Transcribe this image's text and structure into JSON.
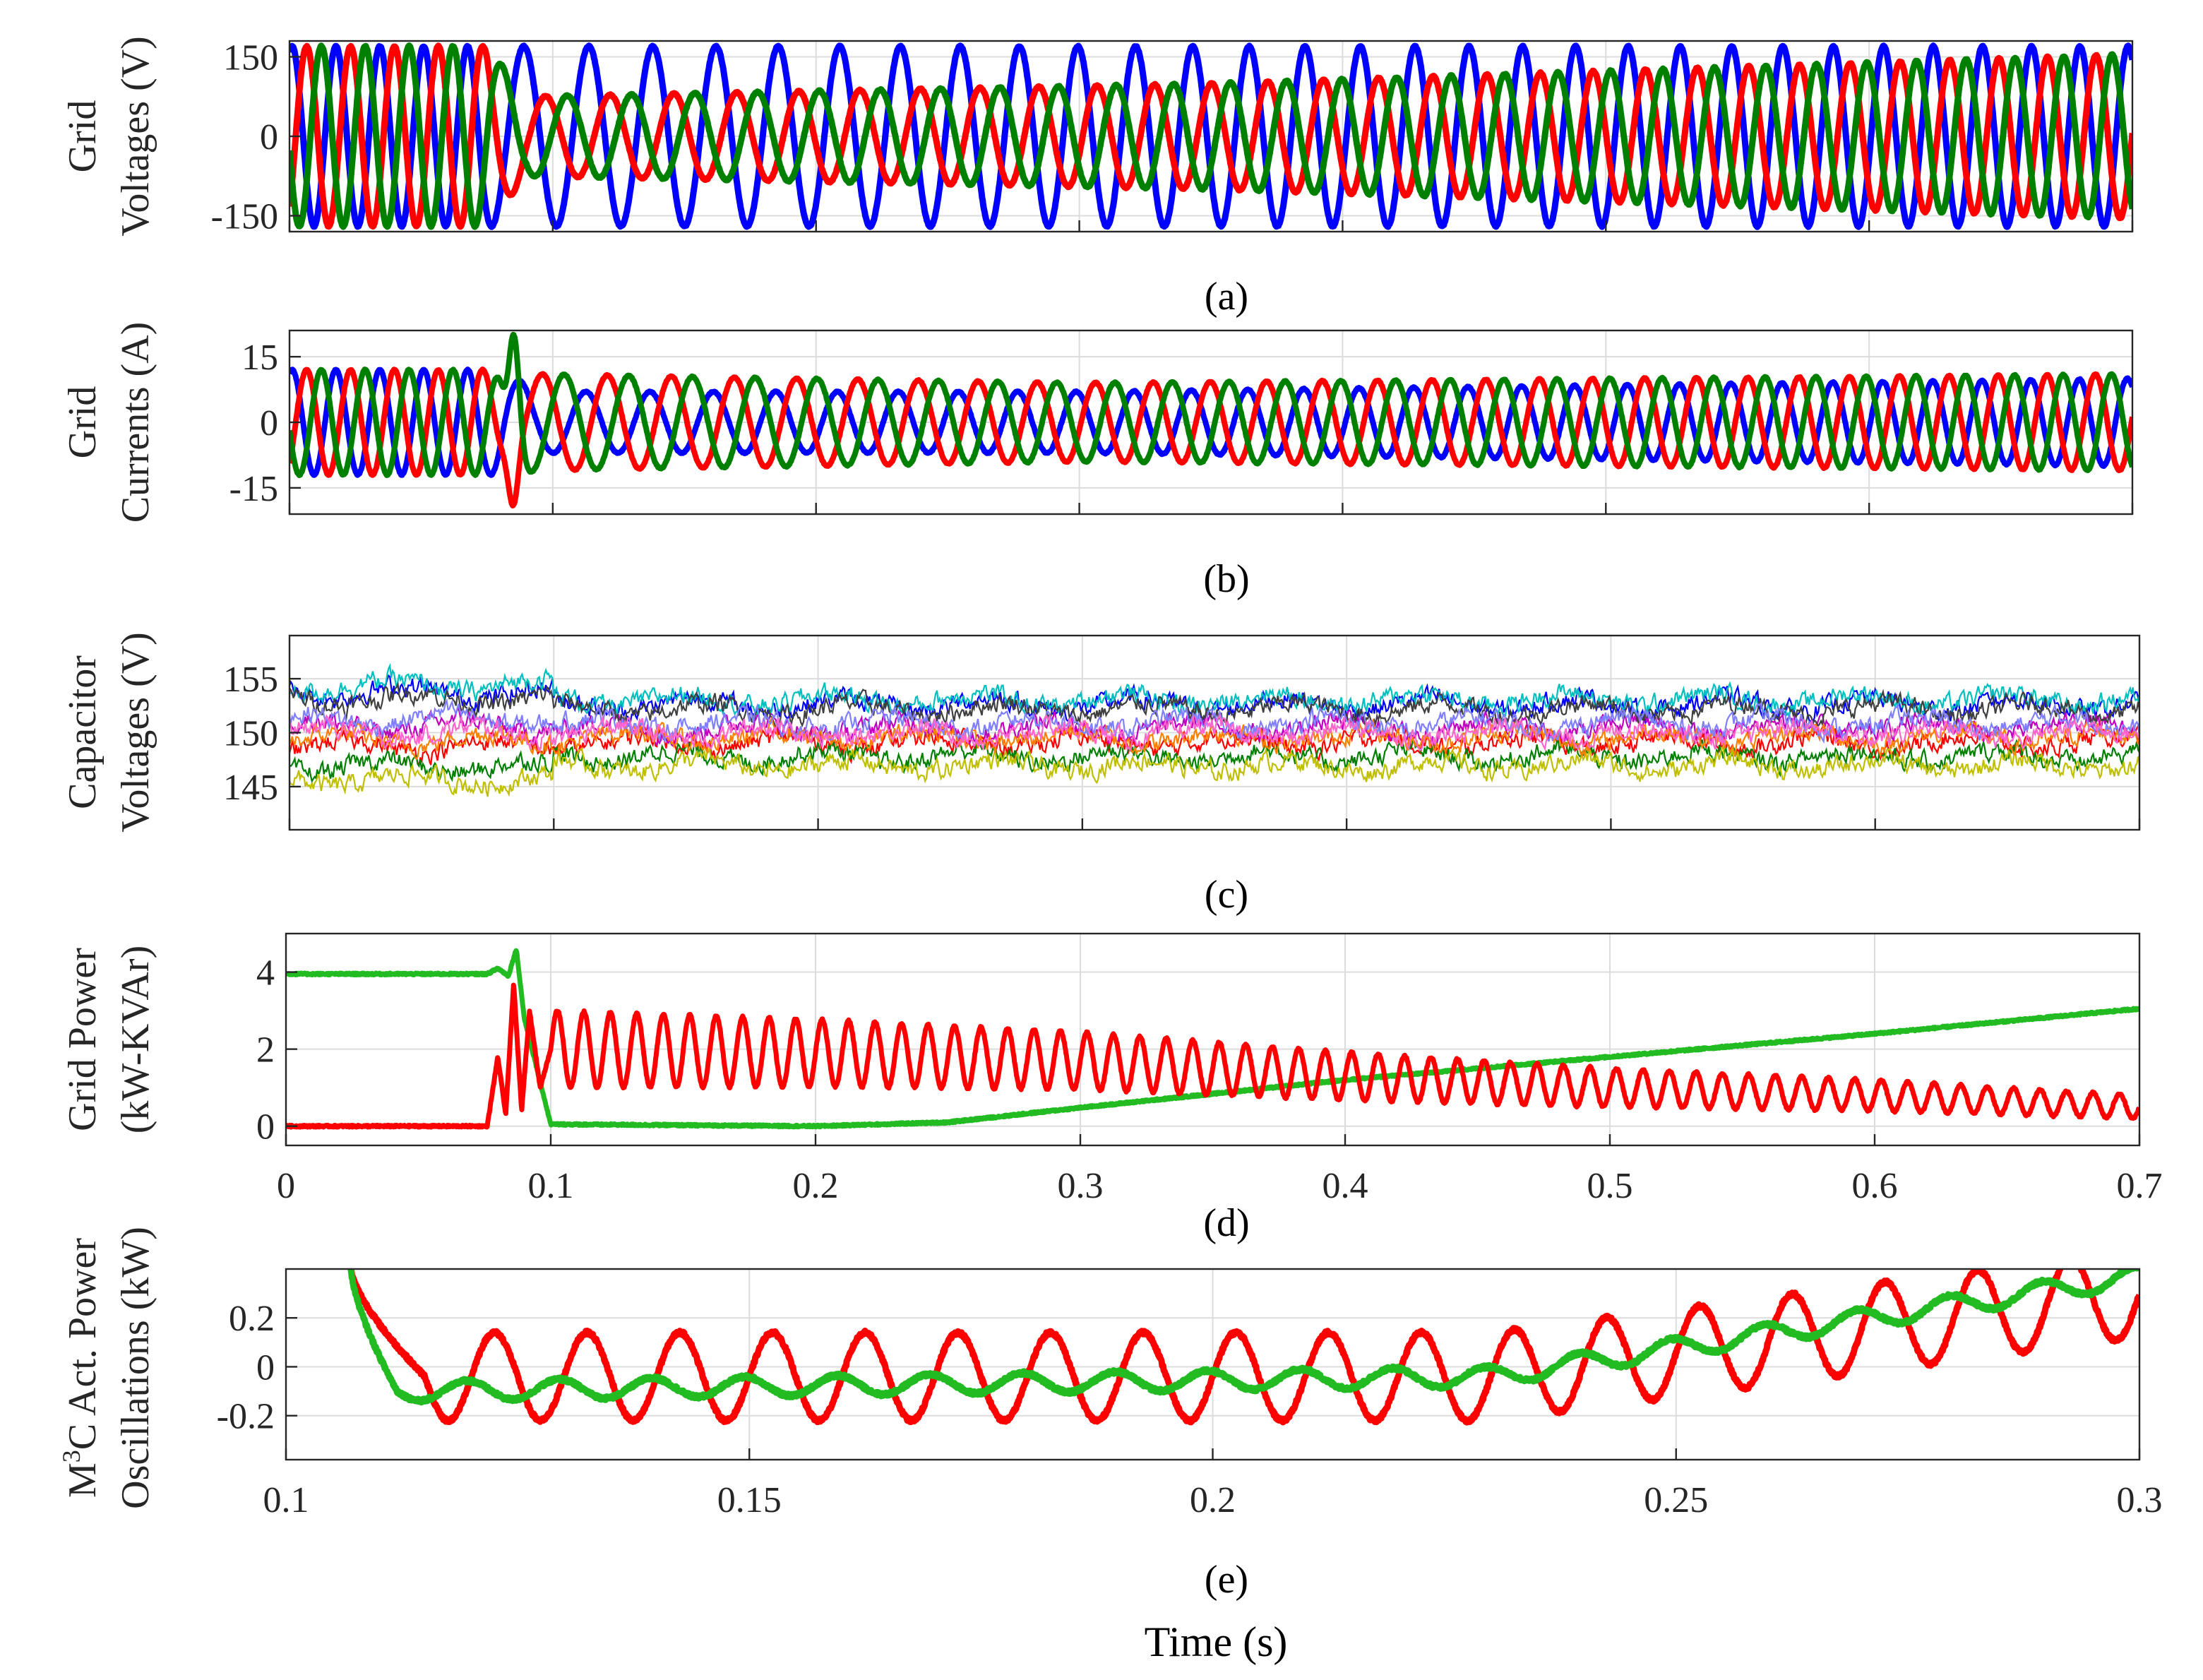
{
  "xlabel": "Time (s)",
  "chart_data": [
    {
      "id": "a",
      "type": "line",
      "caption": "(a)",
      "ylabel_lines": [
        "Grid",
        "Voltages (V)"
      ],
      "xlim": [
        0,
        0.7
      ],
      "ylim": [
        -180,
        180
      ],
      "yticks": [
        -150,
        0,
        150
      ],
      "ytick_labels": [
        "-150",
        "0",
        "150"
      ],
      "xtick_labels_shown": false,
      "waveform": {
        "kind": "three-phase sine",
        "frequency_hz": [
          {
            "t": 0,
            "f": 60
          },
          {
            "t": 0.07,
            "f": 60
          },
          {
            "t": 0.08,
            "f": 40
          },
          {
            "t": 0.7,
            "f": 55
          }
        ],
        "phase_amplitudes": [
          [
            {
              "t": 0,
              "a": 170
            },
            {
              "t": 0.7,
              "a": 170
            }
          ],
          [
            {
              "t": 0,
              "a": 170
            },
            {
              "t": 0.075,
              "a": 170
            },
            {
              "t": 0.09,
              "a": 75
            },
            {
              "t": 0.35,
              "a": 100
            },
            {
              "t": 0.7,
              "a": 155
            }
          ],
          [
            {
              "t": 0,
              "a": 170
            },
            {
              "t": 0.075,
              "a": 170
            },
            {
              "t": 0.09,
              "a": 75
            },
            {
              "t": 0.35,
              "a": 100
            },
            {
              "t": 0.7,
              "a": 155
            }
          ]
        ]
      },
      "series": [
        {
          "name": "phase-a",
          "color": "#0000ff"
        },
        {
          "name": "phase-b",
          "color": "#ff0000"
        },
        {
          "name": "phase-c",
          "color": "#008000"
        }
      ]
    },
    {
      "id": "b",
      "type": "line",
      "caption": "(b)",
      "ylabel_lines": [
        "Grid",
        "Currents (A)"
      ],
      "xlim": [
        0,
        0.7
      ],
      "ylim": [
        -21,
        21
      ],
      "yticks": [
        -15,
        0,
        15
      ],
      "ytick_labels": [
        "-15",
        "0",
        "15"
      ],
      "xtick_labels_shown": false,
      "waveform": {
        "kind": "three-phase sine",
        "frequency_hz": [
          {
            "t": 0,
            "f": 60
          },
          {
            "t": 0.07,
            "f": 60
          },
          {
            "t": 0.085,
            "f": 40
          },
          {
            "t": 0.7,
            "f": 55
          }
        ],
        "phase_amplitudes": [
          [
            {
              "t": 0,
              "a": 12
            },
            {
              "t": 0.08,
              "a": 12
            },
            {
              "t": 0.095,
              "a": 7
            },
            {
              "t": 0.3,
              "a": 7
            },
            {
              "t": 0.7,
              "a": 10
            }
          ],
          [
            {
              "t": 0,
              "a": 12
            },
            {
              "t": 0.08,
              "a": 12
            },
            {
              "t": 0.095,
              "a": 11
            },
            {
              "t": 0.3,
              "a": 9
            },
            {
              "t": 0.7,
              "a": 11
            }
          ],
          [
            {
              "t": 0,
              "a": 12
            },
            {
              "t": 0.08,
              "a": 12
            },
            {
              "t": 0.095,
              "a": 11
            },
            {
              "t": 0.3,
              "a": 9
            },
            {
              "t": 0.7,
              "a": 11
            }
          ]
        ],
        "transient": {
          "t": 0.085,
          "peak_positive": 20,
          "peak_negative": -19
        }
      },
      "series": [
        {
          "name": "phase-a",
          "color": "#0000ff"
        },
        {
          "name": "phase-b",
          "color": "#ff0000"
        },
        {
          "name": "phase-c",
          "color": "#008000"
        }
      ]
    },
    {
      "id": "c",
      "type": "line",
      "caption": "(c)",
      "ylabel_lines": [
        "Capacitor",
        "Voltages (V)"
      ],
      "xlim": [
        0,
        0.7
      ],
      "ylim": [
        141,
        159
      ],
      "yticks": [
        145,
        150,
        155
      ],
      "ytick_labels": [
        "145",
        "150",
        "155"
      ],
      "xtick_labels_shown": false,
      "noise_band": {
        "center": 150,
        "half_width_before_0.1s": 5,
        "half_width_after_0.1s": 3.5
      },
      "series": [
        {
          "name": "cap-1",
          "color": "#0000ff",
          "offset": 3
        },
        {
          "name": "cap-2",
          "color": "#ff0000",
          "offset": -1
        },
        {
          "name": "cap-3",
          "color": "#008000",
          "offset": -2.5
        },
        {
          "name": "cap-4",
          "color": "#00bfbf",
          "offset": 3.5
        },
        {
          "name": "cap-5",
          "color": "#bf00bf",
          "offset": 0.5
        },
        {
          "name": "cap-6",
          "color": "#bfbf00",
          "offset": -3.5
        },
        {
          "name": "cap-7",
          "color": "#404040",
          "offset": 2.5
        },
        {
          "name": "cap-8",
          "color": "#ff8000",
          "offset": -0.5
        },
        {
          "name": "cap-9",
          "color": "#7f7fff",
          "offset": 1
        },
        {
          "name": "cap-10",
          "color": "#ff66cc",
          "offset": 0
        }
      ]
    },
    {
      "id": "d",
      "type": "line",
      "caption": "(d)",
      "ylabel_lines": [
        "Grid Power",
        "(kW-KVAr)"
      ],
      "xlim": [
        0,
        0.7
      ],
      "ylim": [
        -0.5,
        5
      ],
      "yticks": [
        0,
        2,
        4
      ],
      "ytick_labels": [
        "0",
        "2",
        "4"
      ],
      "xticks": [
        0,
        0.1,
        0.2,
        0.3,
        0.4,
        0.5,
        0.6,
        0.7
      ],
      "xtick_labels": [
        "0",
        "0.1",
        "0.2",
        "0.3",
        "0.4",
        "0.5",
        "0.6",
        "0.7"
      ],
      "xtick_labels_shown": true,
      "series": [
        {
          "name": "reactive-power",
          "color": "#22bb22",
          "x": [
            0,
            0.076,
            0.08,
            0.084,
            0.087,
            0.09,
            0.1,
            0.2,
            0.25,
            0.3,
            0.4,
            0.5,
            0.6,
            0.7
          ],
          "y": [
            3.95,
            3.95,
            4.1,
            3.9,
            4.6,
            2.8,
            0.05,
            0.0,
            0.1,
            0.48,
            1.2,
            1.8,
            2.4,
            3.05
          ]
        },
        {
          "name": "active-power",
          "color": "#ff0000",
          "x": [
            0,
            0.076,
            0.08,
            0.083,
            0.086,
            0.089,
            0.092,
            0.096,
            0.1,
            0.2,
            0.3,
            0.4,
            0.5,
            0.6,
            0.7
          ],
          "y": [
            0,
            0,
            1.8,
            0.3,
            3.7,
            0.4,
            3.0,
            1.0,
            2.0,
            1.9,
            1.7,
            1.3,
            1.0,
            0.8,
            0.5
          ],
          "oscillation_amplitude": [
            {
              "t": 0.1,
              "a": 1.0
            },
            {
              "t": 0.3,
              "a": 0.75
            },
            {
              "t": 0.5,
              "a": 0.5
            },
            {
              "t": 0.7,
              "a": 0.3
            }
          ]
        }
      ]
    },
    {
      "id": "e",
      "type": "line",
      "caption": "(e)",
      "ylabel_lines": [
        "M3C Act. Power",
        "Oscillations (kW)"
      ],
      "ylabel_line1_parts": [
        "M",
        "3",
        "C Act. Power"
      ],
      "xlim": [
        0.1,
        0.3
      ],
      "ylim": [
        -0.38,
        0.4
      ],
      "yticks": [
        -0.2,
        0,
        0.2
      ],
      "ytick_labels": [
        "-0.2",
        "0",
        "0.2"
      ],
      "xticks": [
        0.1,
        0.15,
        0.2,
        0.25,
        0.3
      ],
      "xtick_labels": [
        "0.1",
        "0.15",
        "0.2",
        "0.25",
        "0.3"
      ],
      "xtick_labels_shown": true,
      "series": [
        {
          "name": "oscillation-red",
          "color": "#ff0000",
          "frequency_hz": 100,
          "start": {
            "x": 0.107,
            "y": 0.4
          },
          "amplitude": 0.18,
          "mean": [
            {
              "t": 0.115,
              "y": -0.04
            },
            {
              "t": 0.23,
              "y": -0.04
            },
            {
              "t": 0.3,
              "y": 0.3
            }
          ]
        },
        {
          "name": "oscillation-green",
          "color": "#22bb22",
          "frequency_hz": 100,
          "start": {
            "x": 0.107,
            "y": 0.4
          },
          "amplitude": 0.04,
          "mean": [
            {
              "t": 0.112,
              "y": -0.1
            },
            {
              "t": 0.23,
              "y": -0.04
            },
            {
              "t": 0.3,
              "y": 0.37
            }
          ]
        }
      ]
    }
  ]
}
